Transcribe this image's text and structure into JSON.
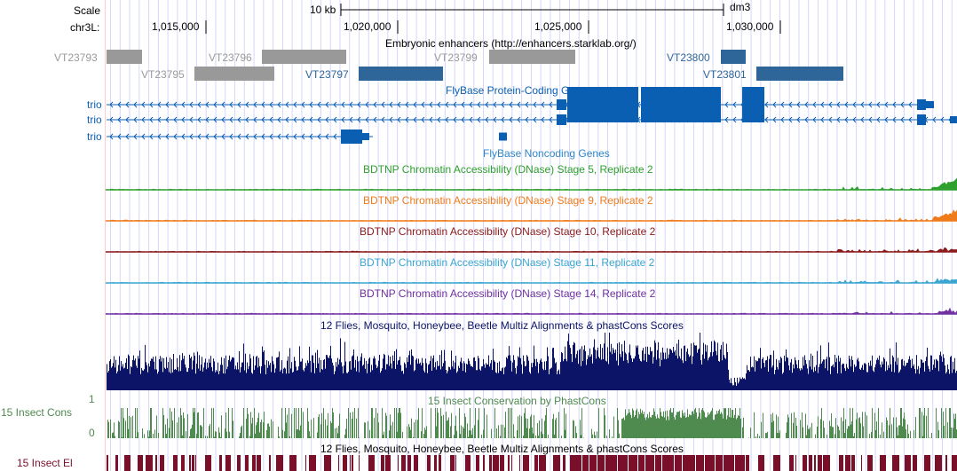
{
  "ruler": {
    "scale_label": "Scale",
    "scale_value": "10 kb",
    "assembly": "dm3",
    "chrom_label": "chr3L:",
    "ticks": [
      "1,015,000",
      "1,020,000",
      "1,025,000",
      "1,030,000"
    ]
  },
  "colors": {
    "grid": "#d6d6ff",
    "enhancer_gray": "#999999",
    "enhancer_blue": "#2f6699",
    "gene_blue": "#0b5fb3",
    "stage5": "#2ea02e",
    "stage9": "#f07b1a",
    "stage10": "#8c1a1a",
    "stage11": "#3aa5d0",
    "stage14": "#7030a0",
    "multiz": "#0b1466",
    "phastcons": "#4f8a4f",
    "elements": "#7a0f2a",
    "left_edge": "#ffcccc"
  },
  "tracks": {
    "enhancers": {
      "title": "Embryonic enhancers (http://enhancers.starklab.org/)",
      "items": [
        {
          "name": "VT23793",
          "style": "gray"
        },
        {
          "name": "VT23795",
          "style": "gray"
        },
        {
          "name": "VT23796",
          "style": "gray"
        },
        {
          "name": "VT23797",
          "style": "blue"
        },
        {
          "name": "VT23799",
          "style": "gray"
        },
        {
          "name": "VT23800",
          "style": "blue"
        },
        {
          "name": "VT23801",
          "style": "blue"
        }
      ]
    },
    "protein_coding": {
      "title": "FlyBase Protein-Coding Genes",
      "genes": [
        "trio",
        "trio",
        "trio"
      ]
    },
    "noncoding": {
      "title": "FlyBase Noncoding Genes"
    },
    "dnase": [
      {
        "title": "BDTNP Chromatin Accessibility (DNase) Stage 5, Replicate 2",
        "color_key": "stage5"
      },
      {
        "title": "BDTNP Chromatin Accessibility (DNase) Stage 9, Replicate 2",
        "color_key": "stage9"
      },
      {
        "title": "BDTNP Chromatin Accessibility (DNase) Stage 10, Replicate 2",
        "color_key": "stage10"
      },
      {
        "title": "BDTNP Chromatin Accessibility (DNase) Stage 11, Replicate 2",
        "color_key": "stage11"
      },
      {
        "title": "BDTNP Chromatin Accessibility (DNase) Stage 14, Replicate 2",
        "color_key": "stage14"
      }
    ],
    "multiz": {
      "title": "12 Flies, Mosquito, Honeybee, Beetle Multiz Alignments & phastCons Scores"
    },
    "phastcons": {
      "title": "15 Insect Conservation by PhastCons",
      "side_label": "15 Insect Cons",
      "axis_max": "1",
      "axis_min": "0"
    },
    "elements": {
      "title": "12 Flies, Mosquito, Honeybee, Beetle Multiz Alignments & phastCons Scores",
      "side_label": "15 Insect El"
    }
  }
}
